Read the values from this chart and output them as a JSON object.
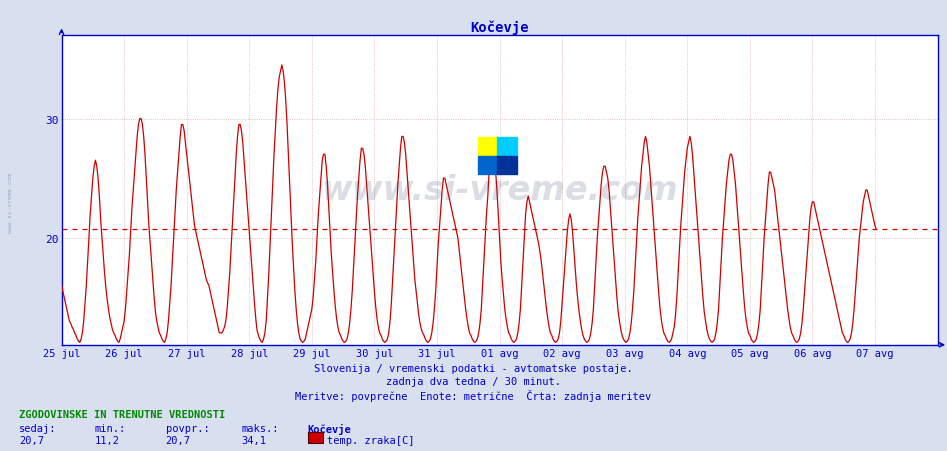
{
  "title": "Kočevje",
  "bg_color": "#d8e0f0",
  "plot_bg_color": "#ffffff",
  "line_color": "#cc0000",
  "avg_line_color": "#cc0000",
  "avg_line_style": "--",
  "avg_value": 20.7,
  "grid_color": "#ddaaaa",
  "grid_color_h": "#ddbbbb",
  "axis_color": "#0000cc",
  "yticks": [
    20,
    30
  ],
  "ylim_min": 11,
  "ylim_max": 37,
  "xlim_start": 0,
  "xlim_end": 672,
  "subtitle1": "Slovenija / vremenski podatki - avtomatske postaje.",
  "subtitle2": "zadnja dva tedna / 30 minut.",
  "subtitle3": "Meritve: povprečne  Enote: metrične  Črta: zadnja meritev",
  "footer_label": "ZGODOVINSKE IN TRENUTNE VREDNOSTI",
  "footer_sedaj": "sedaj:",
  "footer_min": "min.:",
  "footer_povpr": "povpr.:",
  "footer_maks": "maks.:",
  "footer_val_sedaj": "20,7",
  "footer_val_min": "11,2",
  "footer_val_povpr": "20,7",
  "footer_val_maks": "34,1",
  "footer_station": "Kočevje",
  "footer_series": "temp. zraka[C]",
  "legend_color": "#cc0000",
  "watermark_text": "www.si-vreme.com",
  "xtick_labels": [
    "25 jul",
    "26 jul",
    "27 jul",
    "28 jul",
    "29 jul",
    "30 jul",
    "31 jul",
    "01 avg",
    "02 avg",
    "03 avg",
    "04 avg",
    "05 avg",
    "06 avg",
    "07 avg"
  ],
  "xtick_positions": [
    0,
    48,
    96,
    144,
    192,
    240,
    288,
    336,
    384,
    432,
    480,
    528,
    576,
    624
  ],
  "logo_colors": [
    "#ffff00",
    "#00ccff",
    "#0066cc",
    "#003399"
  ],
  "data": [
    16,
    15.5,
    15,
    14.5,
    14,
    13.5,
    13,
    12.8,
    12.5,
    12.3,
    12,
    11.8,
    11.5,
    11.3,
    11.2,
    11.5,
    12,
    13,
    14.5,
    16,
    18,
    20,
    22,
    23.5,
    25,
    26,
    26.5,
    26,
    25,
    23.5,
    21.5,
    20,
    18.5,
    17,
    15.8,
    14.8,
    14,
    13.3,
    12.8,
    12.3,
    12,
    11.8,
    11.5,
    11.3,
    11.2,
    11.5,
    12,
    12.5,
    13,
    14,
    15.5,
    17,
    18.5,
    20.5,
    22.5,
    24,
    25.5,
    27,
    28.5,
    29.5,
    30,
    30,
    29.5,
    28.5,
    27,
    25,
    23,
    21,
    19.5,
    18,
    16.5,
    15,
    13.8,
    13,
    12.5,
    12,
    11.8,
    11.5,
    11.3,
    11.2,
    11.5,
    12,
    13,
    14.5,
    16,
    18,
    20,
    22,
    24,
    25.5,
    27,
    28.5,
    29.5,
    29.5,
    29,
    28,
    27,
    26,
    25,
    24,
    23,
    22,
    21,
    20.5,
    20,
    19.5,
    19,
    18.5,
    18,
    17.5,
    17,
    16.5,
    16.2,
    16,
    15.5,
    15,
    14.5,
    14,
    13.5,
    13,
    12.5,
    12,
    12,
    12,
    12.2,
    12.5,
    13,
    14,
    15.5,
    17,
    19,
    21,
    23,
    25,
    27,
    28.5,
    29.5,
    29.5,
    29,
    28,
    26.5,
    25,
    23.5,
    22,
    20.5,
    19,
    17.5,
    16,
    14.5,
    13.2,
    12.2,
    11.8,
    11.5,
    11.3,
    11.2,
    11.5,
    12,
    13,
    15,
    17,
    19.5,
    22,
    24.5,
    27,
    29,
    31,
    32.5,
    33.5,
    34,
    34.5,
    34,
    33,
    31.5,
    29.5,
    27,
    24.5,
    22,
    19.5,
    17.5,
    15.5,
    14,
    12.8,
    12,
    11.5,
    11.3,
    11.2,
    11.3,
    11.5,
    12,
    12.5,
    13,
    13.5,
    14,
    15,
    16.5,
    18,
    20,
    22,
    23.5,
    25,
    26.5,
    27,
    27,
    26,
    24.5,
    22.5,
    20.5,
    18.5,
    17,
    15.5,
    14.2,
    13.2,
    12.5,
    12,
    11.8,
    11.5,
    11.3,
    11.2,
    11.3,
    11.5,
    12,
    12.8,
    14,
    15.5,
    17.5,
    19.5,
    21.5,
    23.5,
    25,
    26.5,
    27.5,
    27.5,
    27,
    26,
    24.5,
    23,
    21.5,
    20,
    18.5,
    17,
    15.5,
    14.2,
    13.2,
    12.5,
    12,
    11.8,
    11.5,
    11.3,
    11.2,
    11.3,
    11.5,
    12,
    13,
    14.5,
    16.5,
    18.5,
    20.5,
    22.5,
    24.5,
    26,
    27.5,
    28.5,
    28.5,
    28,
    27,
    25.5,
    24,
    22.5,
    21,
    19.5,
    18,
    16.5,
    15.5,
    14.5,
    13.5,
    12.8,
    12.3,
    12,
    11.8,
    11.5,
    11.3,
    11.2,
    11.3,
    11.5,
    12,
    12.8,
    14,
    15.5,
    17.5,
    19.5,
    21,
    22.5,
    24,
    25,
    25,
    24.5,
    24,
    23.5,
    23,
    22.5,
    22,
    21.5,
    21,
    20.5,
    20,
    19,
    18,
    17,
    16,
    15,
    14,
    13.2,
    12.5,
    12,
    11.8,
    11.5,
    11.3,
    11.2,
    11.3,
    11.5,
    12,
    12.8,
    14,
    16,
    18,
    20,
    22,
    23.5,
    25.5,
    27,
    27.5,
    27.5,
    27,
    25.5,
    24,
    22,
    20,
    18,
    16.5,
    15.2,
    14,
    13.2,
    12.5,
    12,
    11.8,
    11.5,
    11.3,
    11.2,
    11.3,
    11.5,
    12,
    12.8,
    14,
    16,
    18,
    20,
    22,
    23,
    23.5,
    23,
    22.5,
    22,
    21.5,
    21,
    20.5,
    20,
    19.5,
    18.8,
    18,
    17,
    16,
    15,
    14,
    13.2,
    12.5,
    12,
    11.8,
    11.5,
    11.3,
    11.2,
    11.3,
    11.5,
    12,
    13,
    14.5,
    16,
    17.5,
    19,
    20.5,
    21.5,
    22,
    21.5,
    20.5,
    19,
    17.5,
    16,
    14.8,
    13.8,
    13,
    12.3,
    11.8,
    11.5,
    11.3,
    11.2,
    11.3,
    11.5,
    12,
    12.8,
    14,
    16,
    18,
    20,
    21.5,
    23,
    24.5,
    25.5,
    26,
    26,
    25.5,
    25,
    24,
    22.5,
    21,
    19.5,
    18,
    16.5,
    15,
    13.8,
    13,
    12.3,
    11.8,
    11.5,
    11.3,
    11.2,
    11.3,
    11.5,
    12,
    12.8,
    14,
    15.5,
    17.5,
    19.5,
    21.5,
    23,
    24.5,
    26,
    27,
    28,
    28.5,
    28,
    27,
    26,
    24.5,
    23,
    21.5,
    20,
    18.5,
    17,
    15.5,
    14.2,
    13.2,
    12.5,
    12,
    11.8,
    11.5,
    11.3,
    11.2,
    11.3,
    11.5,
    12,
    12.5,
    13.5,
    15,
    17,
    19,
    21,
    22.5,
    24,
    25.5,
    26.5,
    27.5,
    28,
    28.5,
    28,
    27,
    25.5,
    24,
    22.5,
    21,
    19.5,
    18,
    16.5,
    15,
    13.8,
    13,
    12.3,
    11.8,
    11.5,
    11.3,
    11.2,
    11.3,
    11.5,
    12,
    12.8,
    14,
    16,
    18,
    20,
    21.5,
    23,
    24.5,
    25.5,
    26.5,
    27,
    27,
    26.5,
    25.5,
    24.5,
    23,
    21.5,
    20,
    18.5,
    17,
    15.5,
    14.2,
    13.2,
    12.5,
    12,
    11.8,
    11.5,
    11.3,
    11.2,
    11.3,
    11.5,
    12,
    12.8,
    14,
    16,
    18,
    20,
    21.5,
    23,
    24.5,
    25.5,
    25.5,
    25,
    24.5,
    24,
    23,
    22,
    21,
    20,
    19,
    18,
    17,
    16,
    15,
    14,
    13.2,
    12.5,
    12,
    11.8,
    11.5,
    11.3,
    11.2,
    11.3,
    11.5,
    12,
    12.8,
    14,
    15.5,
    17,
    18.5,
    20,
    21.5,
    22.5,
    23,
    23,
    22.5,
    22,
    21.5,
    21,
    20.5,
    20,
    19.5,
    19,
    18.5,
    18,
    17.5,
    17,
    16.5,
    16,
    15.5,
    15,
    14.5,
    14,
    13.5,
    13,
    12.5,
    12,
    11.8,
    11.5,
    11.3,
    11.2,
    11.3,
    11.5,
    12,
    12.8,
    14,
    15.5,
    17,
    18.5,
    20,
    21,
    22,
    23,
    23.5,
    24,
    24,
    23.5,
    23,
    22.5,
    22,
    21.5,
    21,
    20.7
  ]
}
